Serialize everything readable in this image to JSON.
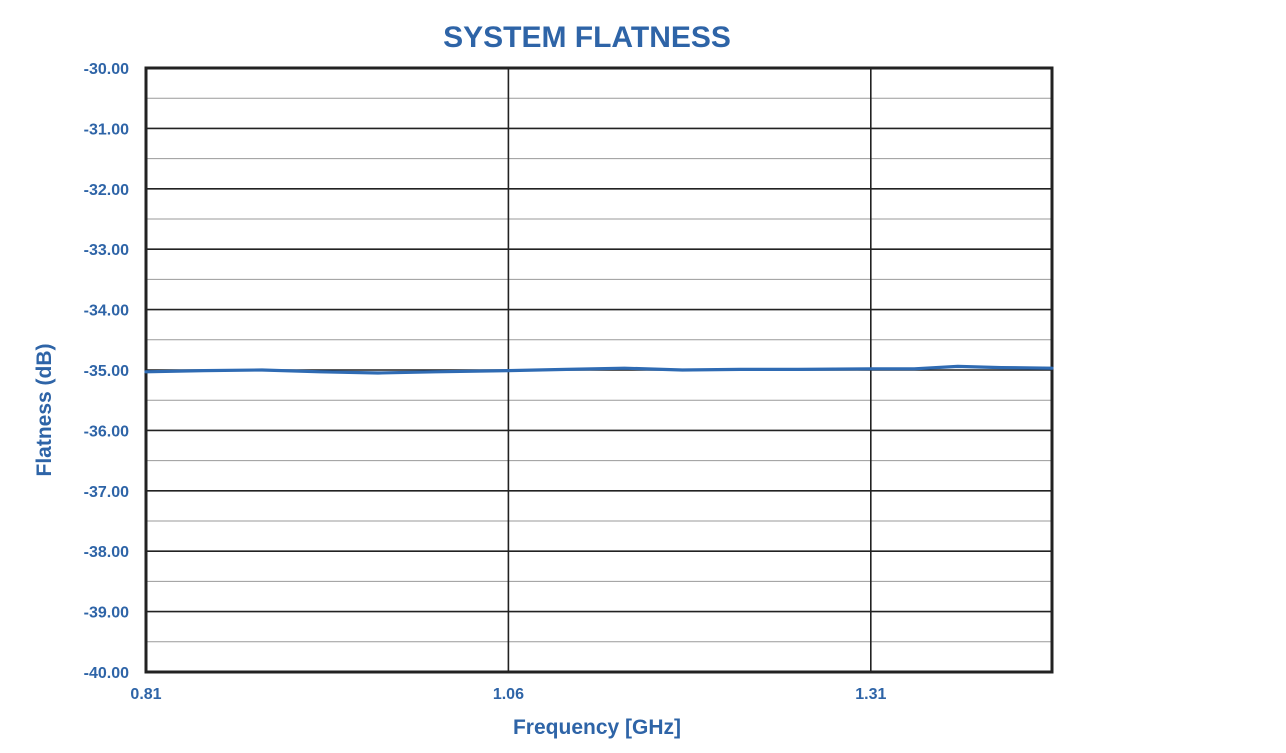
{
  "colors": {
    "text": "#2e64a7",
    "series": "#2f6bb3",
    "major_grid": "#222222",
    "minor_grid": "#9a9a9a",
    "frame": "#222222"
  },
  "chart_data": {
    "type": "line",
    "title": "SYSTEM FLATNESS",
    "xlabel": "Frequency [GHz]",
    "ylabel": "Flatness (dB)",
    "xlim": [
      0.81,
      1.435
    ],
    "ylim": [
      -40.0,
      -30.0
    ],
    "x_ticks": [
      0.81,
      1.06,
      1.31
    ],
    "x_tick_labels": [
      "0.81",
      "1.06",
      "1.31"
    ],
    "y_ticks": [
      -30,
      -31,
      -32,
      -33,
      -34,
      -35,
      -36,
      -37,
      -38,
      -39,
      -40
    ],
    "y_tick_labels": [
      "-30.00",
      "-31.00",
      "-32.00",
      "-33.00",
      "-34.00",
      "-35.00",
      "-36.00",
      "-37.00",
      "-38.00",
      "-39.00",
      "-40.00"
    ],
    "y_minor_step": 0.5,
    "grid": true,
    "legend": "none",
    "series": [
      {
        "x": [
          0.81,
          0.85,
          0.89,
          0.93,
          0.97,
          1.01,
          1.06,
          1.1,
          1.14,
          1.18,
          1.22,
          1.26,
          1.31,
          1.34,
          1.37,
          1.4,
          1.435
        ],
        "values": [
          -35.03,
          -35.01,
          -35.0,
          -35.03,
          -35.05,
          -35.03,
          -35.01,
          -34.99,
          -34.97,
          -35.0,
          -34.99,
          -34.99,
          -34.98,
          -34.98,
          -34.94,
          -34.96,
          -34.97
        ]
      }
    ]
  }
}
